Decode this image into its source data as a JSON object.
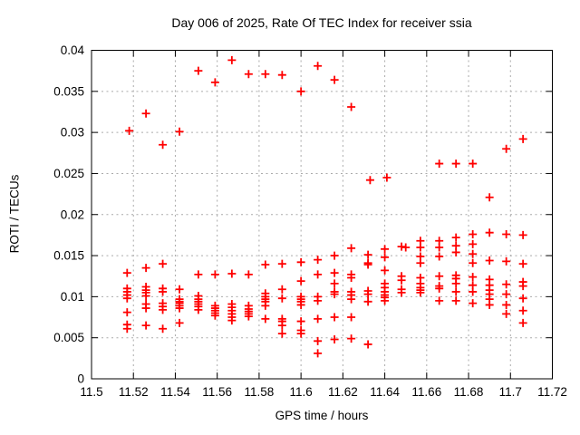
{
  "chart_data": {
    "type": "scatter",
    "title": "Day 006 of 2025, Rate Of TEC Index for receiver ssia",
    "xlabel": "GPS time / hours",
    "ylabel": "ROTI / TECUs",
    "xlim": [
      11.5,
      11.72
    ],
    "ylim": [
      0,
      0.04
    ],
    "xticks": [
      11.5,
      11.52,
      11.54,
      11.56,
      11.58,
      11.6,
      11.62,
      11.64,
      11.66,
      11.68,
      11.7,
      11.72
    ],
    "xtick_labels": [
      "11.5",
      "11.52",
      "11.54",
      "11.56",
      "11.58",
      "11.6",
      "11.62",
      "11.64",
      "11.66",
      "11.68",
      "11.7",
      "11.72"
    ],
    "yticks": [
      0,
      0.005,
      0.01,
      0.015,
      0.02,
      0.025,
      0.03,
      0.035,
      0.04
    ],
    "ytick_labels": [
      "0",
      "0.005",
      "0.01",
      "0.015",
      "0.02",
      "0.025",
      "0.03",
      "0.035",
      "0.04"
    ],
    "grid": true,
    "legend": "none",
    "marker": "plus",
    "colors": {
      "marker": "#ff0000",
      "grid": "#aaaaaa",
      "axis": "#000000",
      "background": "#ffffff",
      "text": "#000000"
    },
    "points": [
      [
        11.518,
        0.0302
      ],
      [
        11.526,
        0.0323
      ],
      [
        11.534,
        0.0285
      ],
      [
        11.542,
        0.0301
      ],
      [
        11.551,
        0.0375
      ],
      [
        11.559,
        0.0361
      ],
      [
        11.567,
        0.0388
      ],
      [
        11.575,
        0.0371
      ],
      [
        11.583,
        0.0371
      ],
      [
        11.591,
        0.037
      ],
      [
        11.6,
        0.035
      ],
      [
        11.608,
        0.0381
      ],
      [
        11.616,
        0.0364
      ],
      [
        11.624,
        0.0331
      ],
      [
        11.633,
        0.0242
      ],
      [
        11.641,
        0.0245
      ],
      [
        11.666,
        0.0262
      ],
      [
        11.674,
        0.0262
      ],
      [
        11.682,
        0.0262
      ],
      [
        11.69,
        0.0221
      ],
      [
        11.698,
        0.028
      ],
      [
        11.706,
        0.0292
      ],
      [
        11.608,
        0.0145
      ],
      [
        11.616,
        0.015
      ],
      [
        11.624,
        0.0159
      ],
      [
        11.632,
        0.0151
      ],
      [
        11.632,
        0.0141
      ],
      [
        11.632,
        0.0139
      ],
      [
        11.64,
        0.0158
      ],
      [
        11.64,
        0.0148
      ],
      [
        11.648,
        0.0161
      ],
      [
        11.65,
        0.016
      ],
      [
        11.657,
        0.0168
      ],
      [
        11.657,
        0.016
      ],
      [
        11.657,
        0.0149
      ],
      [
        11.657,
        0.0141
      ],
      [
        11.666,
        0.0168
      ],
      [
        11.666,
        0.016
      ],
      [
        11.666,
        0.0149
      ],
      [
        11.674,
        0.0172
      ],
      [
        11.674,
        0.0162
      ],
      [
        11.674,
        0.0154
      ],
      [
        11.682,
        0.0176
      ],
      [
        11.682,
        0.0164
      ],
      [
        11.682,
        0.0152
      ],
      [
        11.682,
        0.0141
      ],
      [
        11.69,
        0.0178
      ],
      [
        11.69,
        0.0144
      ],
      [
        11.698,
        0.0176
      ],
      [
        11.698,
        0.0143
      ],
      [
        11.706,
        0.0175
      ],
      [
        11.706,
        0.014
      ],
      [
        11.517,
        0.0129
      ],
      [
        11.526,
        0.0135
      ],
      [
        11.534,
        0.014
      ],
      [
        11.551,
        0.0127
      ],
      [
        11.559,
        0.0127
      ],
      [
        11.567,
        0.0128
      ],
      [
        11.575,
        0.0127
      ],
      [
        11.583,
        0.0139
      ],
      [
        11.591,
        0.014
      ],
      [
        11.6,
        0.0142
      ],
      [
        11.608,
        0.0127
      ],
      [
        11.616,
        0.0129
      ],
      [
        11.624,
        0.0127
      ],
      [
        11.624,
        0.0123
      ],
      [
        11.64,
        0.0132
      ],
      [
        11.517,
        0.011
      ],
      [
        11.517,
        0.0106
      ],
      [
        11.517,
        0.0102
      ],
      [
        11.517,
        0.0098
      ],
      [
        11.517,
        0.0081
      ],
      [
        11.517,
        0.0066
      ],
      [
        11.517,
        0.0061
      ],
      [
        11.526,
        0.0112
      ],
      [
        11.526,
        0.0108
      ],
      [
        11.526,
        0.0105
      ],
      [
        11.526,
        0.0101
      ],
      [
        11.526,
        0.0091
      ],
      [
        11.526,
        0.0086
      ],
      [
        11.526,
        0.0065
      ],
      [
        11.534,
        0.011
      ],
      [
        11.534,
        0.0106
      ],
      [
        11.534,
        0.0092
      ],
      [
        11.534,
        0.0088
      ],
      [
        11.534,
        0.0084
      ],
      [
        11.534,
        0.0061
      ],
      [
        11.542,
        0.0109
      ],
      [
        11.542,
        0.0097
      ],
      [
        11.542,
        0.0094
      ],
      [
        11.542,
        0.0092
      ],
      [
        11.542,
        0.0089
      ],
      [
        11.542,
        0.0086
      ],
      [
        11.542,
        0.0068
      ],
      [
        11.551,
        0.0101
      ],
      [
        11.551,
        0.0097
      ],
      [
        11.551,
        0.0094
      ],
      [
        11.551,
        0.0091
      ],
      [
        11.551,
        0.0088
      ],
      [
        11.551,
        0.0084
      ],
      [
        11.559,
        0.0089
      ],
      [
        11.559,
        0.0086
      ],
      [
        11.559,
        0.0083
      ],
      [
        11.559,
        0.008
      ],
      [
        11.559,
        0.0077
      ],
      [
        11.567,
        0.0091
      ],
      [
        11.567,
        0.0087
      ],
      [
        11.567,
        0.0083
      ],
      [
        11.567,
        0.0079
      ],
      [
        11.567,
        0.0075
      ],
      [
        11.567,
        0.0071
      ],
      [
        11.575,
        0.0089
      ],
      [
        11.575,
        0.0085
      ],
      [
        11.575,
        0.0082
      ],
      [
        11.575,
        0.0079
      ],
      [
        11.575,
        0.0076
      ],
      [
        11.583,
        0.0104
      ],
      [
        11.583,
        0.01
      ],
      [
        11.583,
        0.0097
      ],
      [
        11.583,
        0.0094
      ],
      [
        11.583,
        0.0089
      ],
      [
        11.583,
        0.0073
      ],
      [
        11.591,
        0.0109
      ],
      [
        11.591,
        0.0098
      ],
      [
        11.591,
        0.0073
      ],
      [
        11.591,
        0.007
      ],
      [
        11.591,
        0.0065
      ],
      [
        11.591,
        0.0055
      ],
      [
        11.6,
        0.0119
      ],
      [
        11.6,
        0.01
      ],
      [
        11.6,
        0.0097
      ],
      [
        11.6,
        0.0094
      ],
      [
        11.6,
        0.009
      ],
      [
        11.6,
        0.007
      ],
      [
        11.6,
        0.0059
      ],
      [
        11.6,
        0.0055
      ],
      [
        11.608,
        0.01
      ],
      [
        11.608,
        0.0095
      ],
      [
        11.608,
        0.0073
      ],
      [
        11.608,
        0.0046
      ],
      [
        11.608,
        0.0031
      ],
      [
        11.616,
        0.0116
      ],
      [
        11.616,
        0.0106
      ],
      [
        11.616,
        0.0103
      ],
      [
        11.616,
        0.0075
      ],
      [
        11.616,
        0.0048
      ],
      [
        11.624,
        0.0106
      ],
      [
        11.624,
        0.0102
      ],
      [
        11.624,
        0.0097
      ],
      [
        11.624,
        0.0075
      ],
      [
        11.624,
        0.0049
      ],
      [
        11.632,
        0.0107
      ],
      [
        11.632,
        0.0103
      ],
      [
        11.632,
        0.0094
      ],
      [
        11.632,
        0.0042
      ],
      [
        11.64,
        0.0116
      ],
      [
        11.64,
        0.0111
      ],
      [
        11.64,
        0.0106
      ],
      [
        11.64,
        0.0102
      ],
      [
        11.64,
        0.0099
      ],
      [
        11.64,
        0.0095
      ],
      [
        11.648,
        0.0125
      ],
      [
        11.648,
        0.012
      ],
      [
        11.648,
        0.0109
      ],
      [
        11.648,
        0.0105
      ],
      [
        11.657,
        0.0123
      ],
      [
        11.657,
        0.0116
      ],
      [
        11.657,
        0.0111
      ],
      [
        11.657,
        0.0108
      ],
      [
        11.657,
        0.0105
      ],
      [
        11.666,
        0.0125
      ],
      [
        11.666,
        0.0113
      ],
      [
        11.666,
        0.011
      ],
      [
        11.666,
        0.0095
      ],
      [
        11.674,
        0.0126
      ],
      [
        11.674,
        0.0122
      ],
      [
        11.674,
        0.0116
      ],
      [
        11.674,
        0.0106
      ],
      [
        11.674,
        0.0095
      ],
      [
        11.682,
        0.0124
      ],
      [
        11.682,
        0.0114
      ],
      [
        11.682,
        0.0106
      ],
      [
        11.682,
        0.0092
      ],
      [
        11.69,
        0.0121
      ],
      [
        11.69,
        0.0114
      ],
      [
        11.69,
        0.0108
      ],
      [
        11.69,
        0.0103
      ],
      [
        11.69,
        0.0097
      ],
      [
        11.69,
        0.009
      ],
      [
        11.698,
        0.0115
      ],
      [
        11.698,
        0.0103
      ],
      [
        11.698,
        0.009
      ],
      [
        11.698,
        0.0079
      ],
      [
        11.706,
        0.0118
      ],
      [
        11.706,
        0.0113
      ],
      [
        11.706,
        0.0098
      ],
      [
        11.706,
        0.0083
      ],
      [
        11.706,
        0.0068
      ]
    ]
  }
}
